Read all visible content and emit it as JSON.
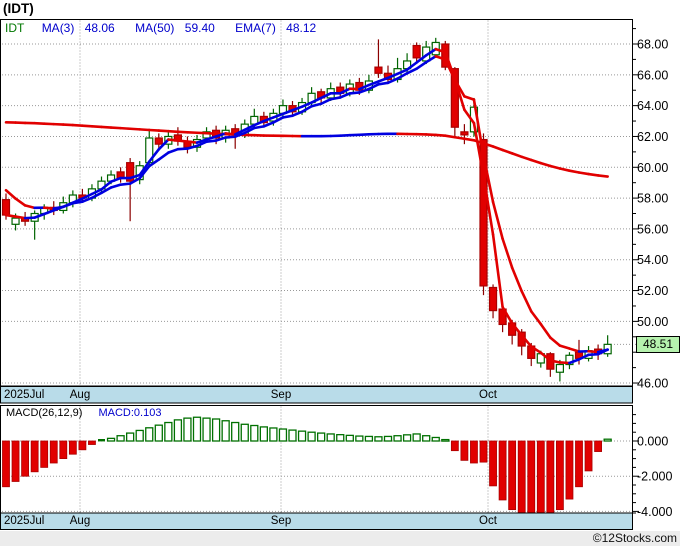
{
  "window": {
    "title": "(IDT)"
  },
  "legend": {
    "symbol": "IDT",
    "ma3_label": "MA(3)",
    "ma3_value": "48.06",
    "ma50_label": "MA(50)",
    "ma50_value": "59.40",
    "ema7_label": "EMA(7)",
    "ema7_value": "48.12"
  },
  "price_axis": {
    "labels": [
      "68.00",
      "66.00",
      "64.00",
      "62.00",
      "60.00",
      "58.00",
      "56.00",
      "54.00",
      "52.00",
      "50.00",
      "46.00"
    ],
    "values": [
      68,
      66,
      64,
      62,
      60,
      58,
      56,
      54,
      52,
      50,
      46
    ],
    "last_price_label": "48.51",
    "last_price": 48.51
  },
  "date_axis": {
    "jul": "2025Jul",
    "aug": "Aug",
    "sep": "Sep",
    "oct": "Oct"
  },
  "macd_panel": {
    "label": "MACD(26,12,9)",
    "value_label": "MACD:0.103",
    "axis_labels": [
      "0.000",
      "-2.000",
      "-4.000"
    ],
    "axis_values": [
      0,
      -2,
      -4
    ]
  },
  "footer": {
    "copyright": "©12Stocks.com"
  },
  "colors": {
    "up_outline": "#006400",
    "down_fill": "#e10000",
    "down_outline": "#aa0000",
    "down_wick": "#8b0000",
    "line_up": "#0000e0",
    "line_down": "#e10000",
    "grid": "#999999",
    "datebar_fill": "#b9dce9",
    "box_fill": "#b6f2ae",
    "legend_blue": "#0000cc",
    "legend_green": "#007700",
    "macd_up_outline": "#007000"
  },
  "chart_data": {
    "type": "candlestick+macd",
    "title": "(IDT)",
    "price_range": [
      46,
      68
    ],
    "macd_range": [
      -4,
      0
    ],
    "month_lines_x": [
      80,
      281,
      488
    ],
    "candles_ohlc": [
      [
        57.9,
        58.3,
        56.6,
        56.9
      ],
      [
        56.3,
        57.0,
        55.9,
        56.7
      ],
      [
        56.7,
        57.1,
        56.2,
        56.5
      ],
      [
        56.5,
        57.2,
        55.3,
        57.0
      ],
      [
        57.0,
        57.6,
        56.6,
        57.4
      ],
      [
        57.4,
        57.8,
        56.9,
        57.2
      ],
      [
        57.2,
        58.1,
        57.0,
        57.7
      ],
      [
        57.7,
        58.5,
        57.4,
        58.2
      ],
      [
        58.2,
        58.6,
        57.7,
        58.0
      ],
      [
        58.0,
        58.9,
        57.8,
        58.6
      ],
      [
        58.6,
        59.4,
        58.3,
        59.1
      ],
      [
        59.1,
        59.8,
        58.9,
        59.5
      ],
      [
        59.7,
        60.0,
        59.0,
        59.3
      ],
      [
        60.3,
        60.6,
        56.5,
        59.1
      ],
      [
        59.2,
        60.4,
        58.9,
        60.1
      ],
      [
        60.3,
        62.4,
        60.1,
        61.9
      ],
      [
        61.9,
        62.2,
        61.1,
        61.5
      ],
      [
        61.5,
        62.4,
        61.2,
        62.0
      ],
      [
        62.1,
        62.6,
        61.4,
        61.7
      ],
      [
        61.7,
        62.0,
        60.9,
        61.3
      ],
      [
        61.3,
        62.1,
        61.0,
        61.8
      ],
      [
        61.9,
        62.6,
        61.6,
        62.3
      ],
      [
        62.4,
        62.7,
        61.5,
        61.9
      ],
      [
        61.9,
        62.7,
        61.6,
        62.4
      ],
      [
        62.5,
        62.8,
        61.2,
        62.1
      ],
      [
        62.1,
        63.1,
        61.9,
        62.8
      ],
      [
        62.8,
        63.8,
        62.5,
        63.3
      ],
      [
        63.3,
        63.6,
        62.6,
        62.9
      ],
      [
        63.0,
        63.8,
        62.7,
        63.5
      ],
      [
        63.5,
        64.4,
        63.2,
        64.0
      ],
      [
        64.0,
        64.3,
        63.3,
        63.6
      ],
      [
        63.6,
        64.5,
        63.4,
        64.2
      ],
      [
        64.2,
        65.2,
        64.0,
        64.8
      ],
      [
        64.9,
        65.1,
        64.2,
        64.5
      ],
      [
        64.5,
        65.5,
        64.3,
        65.1
      ],
      [
        65.2,
        65.5,
        64.5,
        64.8
      ],
      [
        64.8,
        65.7,
        64.6,
        65.4
      ],
      [
        65.5,
        65.8,
        64.7,
        65.0
      ],
      [
        65.0,
        66.0,
        64.8,
        65.6
      ],
      [
        66.5,
        68.3,
        65.8,
        66.1
      ],
      [
        66.1,
        66.6,
        65.4,
        65.7
      ],
      [
        65.7,
        67.1,
        65.5,
        66.4
      ],
      [
        66.4,
        67.4,
        66.1,
        66.9
      ],
      [
        67.9,
        68.1,
        66.8,
        67.1
      ],
      [
        66.9,
        68.2,
        66.7,
        67.8
      ],
      [
        67.3,
        68.4,
        67.1,
        68.1
      ],
      [
        68.0,
        68.2,
        66.3,
        66.5
      ],
      [
        66.4,
        66.5,
        61.9,
        62.6
      ],
      [
        62.3,
        62.8,
        61.5,
        62.1
      ],
      [
        62.3,
        64.5,
        62.0,
        63.9
      ],
      [
        61.8,
        62.2,
        51.7,
        52.3
      ],
      [
        52.2,
        52.4,
        50.2,
        50.7
      ],
      [
        50.8,
        51.0,
        49.3,
        49.8
      ],
      [
        49.9,
        50.1,
        48.5,
        49.1
      ],
      [
        49.3,
        49.5,
        47.8,
        48.4
      ],
      [
        48.4,
        48.6,
        47.1,
        47.6
      ],
      [
        47.3,
        48.1,
        47.0,
        47.9
      ],
      [
        47.9,
        48.0,
        46.4,
        46.9
      ],
      [
        46.7,
        47.5,
        46.1,
        47.2
      ],
      [
        47.2,
        48.0,
        46.9,
        47.8
      ],
      [
        48.0,
        48.8,
        47.2,
        47.6
      ],
      [
        47.6,
        48.4,
        47.4,
        48.1
      ],
      [
        48.2,
        48.5,
        47.5,
        47.9
      ],
      [
        47.9,
        49.1,
        47.7,
        48.51
      ]
    ],
    "macd_values": [
      -2.6,
      -2.3,
      -2.0,
      -1.75,
      -1.5,
      -1.25,
      -1.0,
      -0.75,
      -0.5,
      -0.2,
      0.05,
      0.15,
      0.3,
      0.45,
      0.6,
      0.75,
      0.9,
      1.05,
      1.2,
      1.3,
      1.35,
      1.3,
      1.25,
      1.15,
      1.05,
      0.95,
      0.88,
      0.8,
      0.74,
      0.68,
      0.62,
      0.56,
      0.5,
      0.45,
      0.4,
      0.36,
      0.32,
      0.28,
      0.26,
      0.24,
      0.26,
      0.3,
      0.35,
      0.4,
      0.3,
      0.2,
      0.08,
      -0.55,
      -1.1,
      -1.25,
      -1.2,
      -2.55,
      -3.35,
      -3.9,
      -4.15,
      -4.25,
      -4.3,
      -4.2,
      -3.9,
      -3.3,
      -2.6,
      -1.7,
      -0.6,
      0.103
    ],
    "ma50_values": [
      62.92,
      62.9,
      62.88,
      62.86,
      62.83,
      62.8,
      62.77,
      62.74,
      62.7,
      62.66,
      62.62,
      62.58,
      62.54,
      62.5,
      62.46,
      62.42,
      62.38,
      62.34,
      62.3,
      62.27,
      62.24,
      62.21,
      62.18,
      62.15,
      62.12,
      62.1,
      62.08,
      62.06,
      62.05,
      62.04,
      62.03,
      62.02,
      62.02,
      62.02,
      62.03,
      62.05,
      62.08,
      62.11,
      62.14,
      62.16,
      62.17,
      62.17,
      62.16,
      62.15,
      62.13,
      62.1,
      62.05,
      61.95,
      61.85,
      61.75,
      61.55,
      61.35,
      61.12,
      60.9,
      60.68,
      60.47,
      60.27,
      60.08,
      59.92,
      59.78,
      59.66,
      59.56,
      59.47,
      59.4
    ]
  }
}
